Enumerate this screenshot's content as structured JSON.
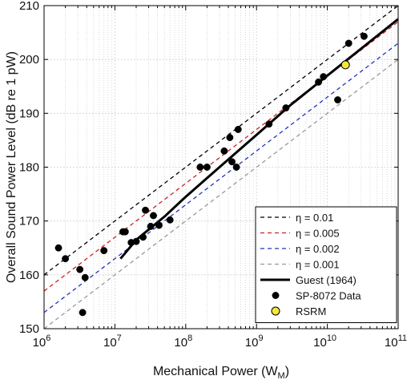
{
  "chart_data": {
    "type": "scatter",
    "title": "",
    "xlabel": "Mechanical Power (W",
    "xlabel_sub": "M",
    "xlabel_end": ")",
    "ylabel": "Overall Sound Power Level (dB re 1 pW)",
    "x_scale": "log",
    "x_range": [
      1000000,
      100000000000
    ],
    "y_range": [
      150,
      210
    ],
    "x_ticks": [
      {
        "value": 1000000,
        "base": "10",
        "exp": "6"
      },
      {
        "value": 10000000,
        "base": "10",
        "exp": "7"
      },
      {
        "value": 100000000,
        "base": "10",
        "exp": "8"
      },
      {
        "value": 1000000000,
        "base": "10",
        "exp": "9"
      },
      {
        "value": 10000000000,
        "base": "10",
        "exp": "10"
      },
      {
        "value": 100000000000,
        "base": "10",
        "exp": "11"
      }
    ],
    "y_ticks": [
      "150",
      "160",
      "170",
      "180",
      "190",
      "200",
      "210"
    ],
    "grid": true,
    "legend_position": "bottom-right",
    "series": [
      {
        "name": "η = 0.01",
        "kind": "dashed",
        "color": "#000000",
        "efficiency": 0.01
      },
      {
        "name": "η = 0.005",
        "kind": "dashed",
        "color": "#cc2222",
        "efficiency": 0.005
      },
      {
        "name": "η = 0.002",
        "kind": "dashed",
        "color": "#2233bb",
        "efficiency": 0.002
      },
      {
        "name": "η = 0.001",
        "kind": "dashed",
        "color": "#999999",
        "efficiency": 0.001
      },
      {
        "name": "Guest (1964)",
        "kind": "solid",
        "color": "#000000",
        "x": [
          12000000,
          20000000,
          50000000,
          100000000,
          300000000,
          1000000000,
          3000000000,
          10000000000,
          30000000000,
          100000000000
        ],
        "y": [
          163.0,
          166.5,
          170.8,
          174.5,
          180.0,
          186.0,
          191.5,
          197.0,
          202.0,
          207.5
        ]
      },
      {
        "name": "SP-8072 Data",
        "kind": "points",
        "color": "#000000",
        "points": [
          [
            1600000,
            165.0
          ],
          [
            2000000,
            163.0
          ],
          [
            3200000,
            161.0
          ],
          [
            3800000,
            159.5
          ],
          [
            3500000,
            153.0
          ],
          [
            7000000,
            164.5
          ],
          [
            13000000,
            168.0
          ],
          [
            14000000,
            168.0
          ],
          [
            17000000,
            166.0
          ],
          [
            20000000,
            166.2
          ],
          [
            25000000,
            167.0
          ],
          [
            27000000,
            172.0
          ],
          [
            32000000,
            169.0
          ],
          [
            35000000,
            171.0
          ],
          [
            42000000,
            169.2
          ],
          [
            60000000,
            170.2
          ],
          [
            160000000,
            180.0
          ],
          [
            200000000,
            180.0
          ],
          [
            350000000,
            183.0
          ],
          [
            420000000,
            185.5
          ],
          [
            450000000,
            181.0
          ],
          [
            520000000,
            180.0
          ],
          [
            550000000,
            187.0
          ],
          [
            1500000000,
            188.0
          ],
          [
            2600000000,
            191.0
          ],
          [
            7500000000,
            195.8
          ],
          [
            8800000000,
            196.8
          ],
          [
            14000000000,
            192.5
          ],
          [
            20000000000,
            203.0
          ],
          [
            33000000000,
            204.3
          ]
        ]
      },
      {
        "name": "RSRM",
        "kind": "points",
        "color": "#f5e63c",
        "points": [
          [
            18000000000,
            199.0
          ]
        ]
      }
    ]
  }
}
